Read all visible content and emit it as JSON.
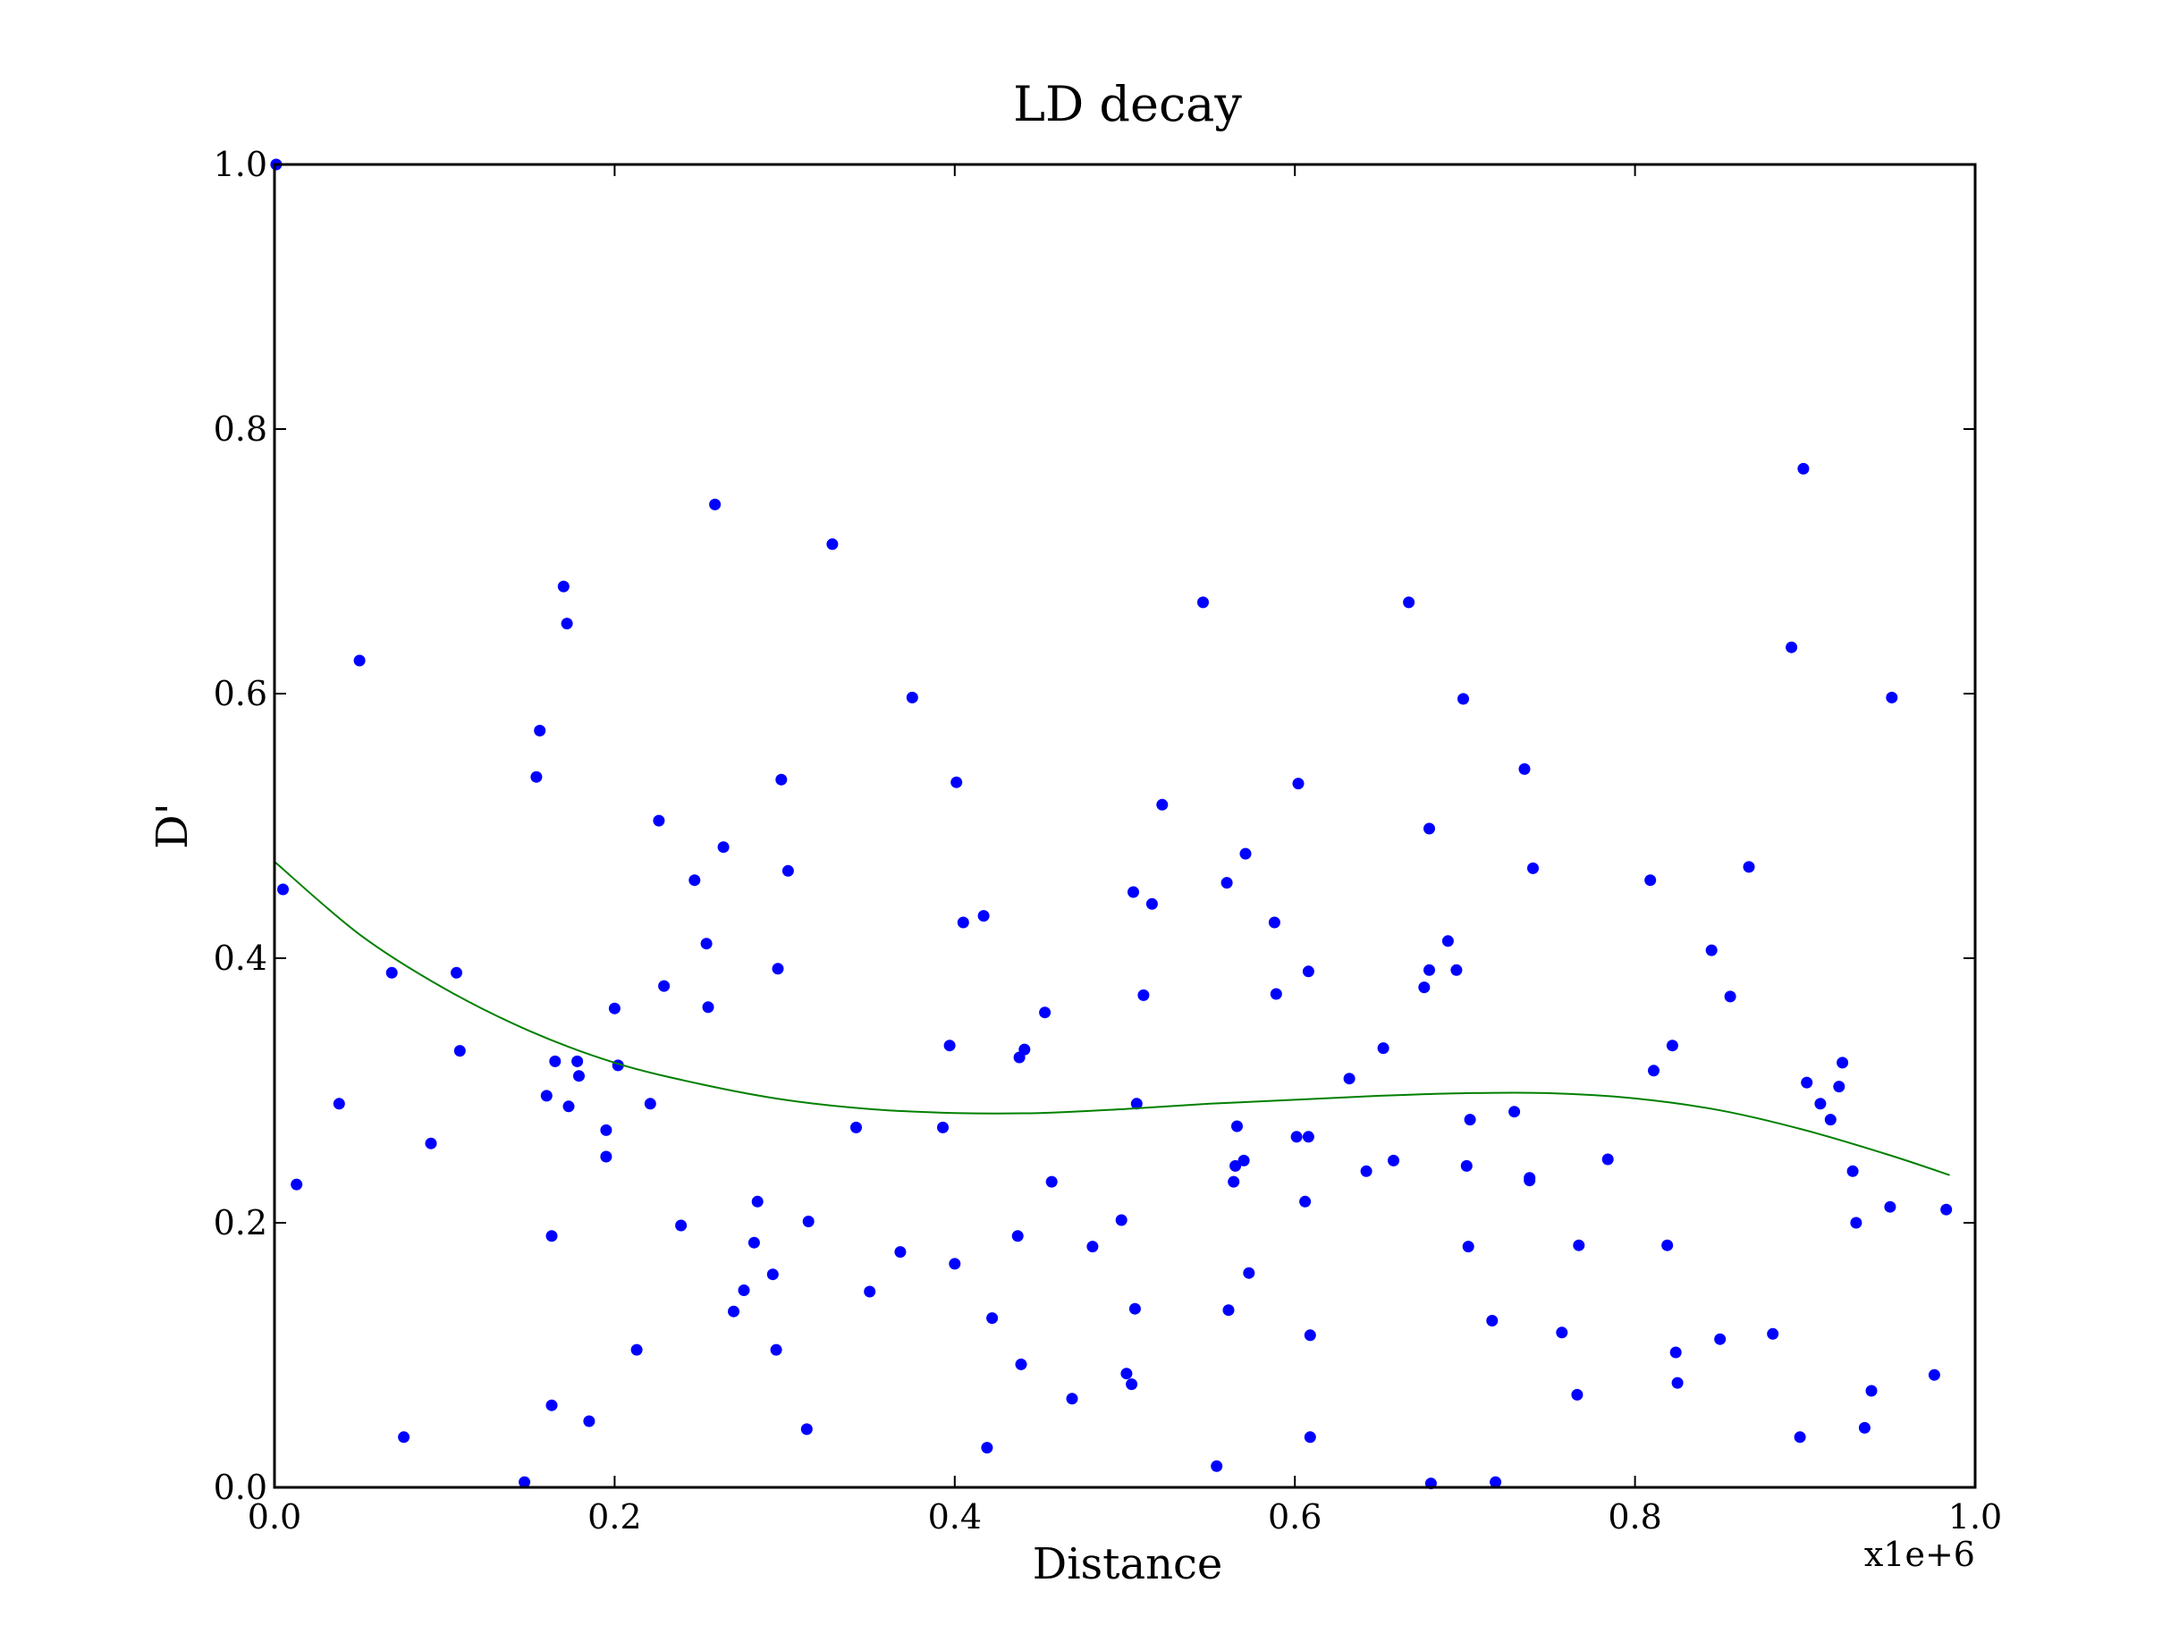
{
  "chart_data": {
    "type": "scatter",
    "title": "LD decay",
    "xlabel": "Distance",
    "ylabel": "D'",
    "x_offset_label": "x1e+6",
    "xlim": [
      0,
      1000000
    ],
    "ylim": [
      0,
      1.0
    ],
    "x_ticks": [
      0,
      200000,
      400000,
      600000,
      800000,
      1000000
    ],
    "x_tick_labels": [
      "0.0",
      "0.2",
      "0.4",
      "0.6",
      "0.8",
      "1.0"
    ],
    "y_ticks": [
      0,
      0.2,
      0.4,
      0.6,
      0.8,
      1.0
    ],
    "y_tick_labels": [
      "0.0",
      "0.2",
      "0.4",
      "0.6",
      "0.8",
      "1.0"
    ],
    "grid": false,
    "colors": {
      "points": "#0000ff",
      "fit": "#008000",
      "axes": "#000000"
    },
    "series": [
      {
        "kind": "scatter",
        "points": [
          [
            1000,
            1.0
          ],
          [
            5000,
            0.452
          ],
          [
            13000,
            0.229
          ],
          [
            38000,
            0.29
          ],
          [
            50000,
            0.625
          ],
          [
            69000,
            0.389
          ],
          [
            76000,
            0.038
          ],
          [
            92000,
            0.26
          ],
          [
            107000,
            0.389
          ],
          [
            109000,
            0.33
          ],
          [
            147000,
            0.004
          ],
          [
            154000,
            0.537
          ],
          [
            156000,
            0.572
          ],
          [
            160000,
            0.296
          ],
          [
            163000,
            0.19
          ],
          [
            163000,
            0.062
          ],
          [
            165000,
            0.322
          ],
          [
            170000,
            0.681
          ],
          [
            172000,
            0.653
          ],
          [
            173000,
            0.288
          ],
          [
            178000,
            0.322
          ],
          [
            179000,
            0.311
          ],
          [
            185000,
            0.05
          ],
          [
            195000,
            0.25
          ],
          [
            195000,
            0.27
          ],
          [
            200000,
            0.362
          ],
          [
            202000,
            0.319
          ],
          [
            213000,
            0.104
          ],
          [
            221000,
            0.29
          ],
          [
            226000,
            0.504
          ],
          [
            229000,
            0.379
          ],
          [
            239000,
            0.198
          ],
          [
            247000,
            0.459
          ],
          [
            254000,
            0.411
          ],
          [
            255000,
            0.363
          ],
          [
            259000,
            0.743
          ],
          [
            264000,
            0.484
          ],
          [
            270000,
            0.133
          ],
          [
            276000,
            0.149
          ],
          [
            282000,
            0.185
          ],
          [
            284000,
            0.216
          ],
          [
            293000,
            0.161
          ],
          [
            295000,
            0.104
          ],
          [
            296000,
            0.392
          ],
          [
            298000,
            0.535
          ],
          [
            302000,
            0.466
          ],
          [
            313000,
            0.044
          ],
          [
            314000,
            0.201
          ],
          [
            328000,
            0.713
          ],
          [
            342000,
            0.272
          ],
          [
            350000,
            0.148
          ],
          [
            368000,
            0.178
          ],
          [
            375000,
            0.597
          ],
          [
            393000,
            0.272
          ],
          [
            397000,
            0.334
          ],
          [
            400000,
            0.169
          ],
          [
            401000,
            0.533
          ],
          [
            405000,
            0.427
          ],
          [
            417000,
            0.432
          ],
          [
            419000,
            0.03
          ],
          [
            422000,
            0.128
          ],
          [
            437000,
            0.19
          ],
          [
            438000,
            0.325
          ],
          [
            439000,
            0.093
          ],
          [
            441000,
            0.331
          ],
          [
            469000,
            0.067
          ],
          [
            453000,
            0.359
          ],
          [
            457000,
            0.231
          ],
          [
            481000,
            0.182
          ],
          [
            498000,
            0.202
          ],
          [
            501000,
            0.086
          ],
          [
            504000,
            0.078
          ],
          [
            505000,
            0.45
          ],
          [
            506000,
            0.135
          ],
          [
            507000,
            0.29
          ],
          [
            511000,
            0.372
          ],
          [
            516000,
            0.441
          ],
          [
            522000,
            0.516
          ],
          [
            546000,
            0.669
          ],
          [
            554000,
            0.016
          ],
          [
            560000,
            0.457
          ],
          [
            561000,
            0.134
          ],
          [
            564000,
            0.231
          ],
          [
            565000,
            0.243
          ],
          [
            566000,
            0.273
          ],
          [
            570000,
            0.247
          ],
          [
            571000,
            0.479
          ],
          [
            573000,
            0.162
          ],
          [
            588000,
            0.427
          ],
          [
            589000,
            0.373
          ],
          [
            601000,
            0.265
          ],
          [
            602000,
            0.532
          ],
          [
            606000,
            0.216
          ],
          [
            608000,
            0.265
          ],
          [
            608000,
            0.39
          ],
          [
            609000,
            0.115
          ],
          [
            609000,
            0.038
          ],
          [
            632000,
            0.309
          ],
          [
            642000,
            0.239
          ],
          [
            652000,
            0.332
          ],
          [
            658000,
            0.247
          ],
          [
            667000,
            0.669
          ],
          [
            676000,
            0.378
          ],
          [
            679000,
            0.391
          ],
          [
            679000,
            0.498
          ],
          [
            680000,
            0.003
          ],
          [
            690000,
            0.413
          ],
          [
            695000,
            0.391
          ],
          [
            699000,
            0.596
          ],
          [
            701000,
            0.243
          ],
          [
            702000,
            0.182
          ],
          [
            703000,
            0.278
          ],
          [
            716000,
            0.126
          ],
          [
            718000,
            0.004
          ],
          [
            729000,
            0.284
          ],
          [
            735000,
            0.543
          ],
          [
            738000,
            0.232
          ],
          [
            738000,
            0.234
          ],
          [
            740000,
            0.468
          ],
          [
            757000,
            0.117
          ],
          [
            766000,
            0.07
          ],
          [
            767000,
            0.183
          ],
          [
            784000,
            0.248
          ],
          [
            809000,
            0.459
          ],
          [
            811000,
            0.315
          ],
          [
            819000,
            0.183
          ],
          [
            822000,
            0.334
          ],
          [
            824000,
            0.102
          ],
          [
            825000,
            0.079
          ],
          [
            845000,
            0.406
          ],
          [
            850000,
            0.112
          ],
          [
            856000,
            0.371
          ],
          [
            867000,
            0.469
          ],
          [
            881000,
            0.116
          ],
          [
            892000,
            0.635
          ],
          [
            897000,
            0.038
          ],
          [
            899000,
            0.77
          ],
          [
            901000,
            0.306
          ],
          [
            909000,
            0.29
          ],
          [
            915000,
            0.278
          ],
          [
            920000,
            0.303
          ],
          [
            922000,
            0.321
          ],
          [
            928000,
            0.239
          ],
          [
            930000,
            0.2
          ],
          [
            935000,
            0.045
          ],
          [
            939000,
            0.073
          ],
          [
            950000,
            0.212
          ],
          [
            951000,
            0.597
          ],
          [
            976000,
            0.085
          ],
          [
            983000,
            0.21
          ]
        ]
      },
      {
        "kind": "line",
        "x": [
          0,
          50000,
          100000,
          150000,
          200000,
          250000,
          300000,
          350000,
          400000,
          450000,
          500000,
          550000,
          600000,
          650000,
          700000,
          750000,
          800000,
          850000,
          900000,
          950000,
          985000
        ],
        "y": [
          0.473,
          0.418,
          0.377,
          0.345,
          0.321,
          0.305,
          0.293,
          0.286,
          0.283,
          0.283,
          0.286,
          0.29,
          0.293,
          0.296,
          0.298,
          0.298,
          0.294,
          0.285,
          0.27,
          0.251,
          0.236
        ]
      }
    ]
  }
}
